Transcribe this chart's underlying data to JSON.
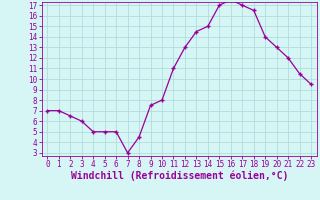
{
  "hours": [
    0,
    1,
    2,
    3,
    4,
    5,
    6,
    7,
    8,
    9,
    10,
    11,
    12,
    13,
    14,
    15,
    16,
    17,
    18,
    19,
    20,
    21,
    22,
    23
  ],
  "values": [
    7,
    7,
    6.5,
    6,
    5,
    5,
    5,
    3,
    4.5,
    7.5,
    8,
    11,
    13,
    14.5,
    15,
    17,
    17.5,
    17,
    16.5,
    14,
    13,
    12,
    10.5,
    9.5
  ],
  "line_color": "#990099",
  "marker": "+",
  "bg_color": "#d6f5f5",
  "grid_color": "#b0dede",
  "xlabel": "Windchill (Refroidissement éolien,°C)",
  "ylim_min": 3,
  "ylim_max": 17,
  "xlim_min": 0,
  "xlim_max": 23,
  "yticks": [
    3,
    4,
    5,
    6,
    7,
    8,
    9,
    10,
    11,
    12,
    13,
    14,
    15,
    16,
    17
  ],
  "xticks": [
    0,
    1,
    2,
    3,
    4,
    5,
    6,
    7,
    8,
    9,
    10,
    11,
    12,
    13,
    14,
    15,
    16,
    17,
    18,
    19,
    20,
    21,
    22,
    23
  ],
  "spine_color": "#990099",
  "tick_label_fontsize": 5.5,
  "xlabel_fontsize": 7.0,
  "marker_size": 3,
  "line_width": 0.9
}
